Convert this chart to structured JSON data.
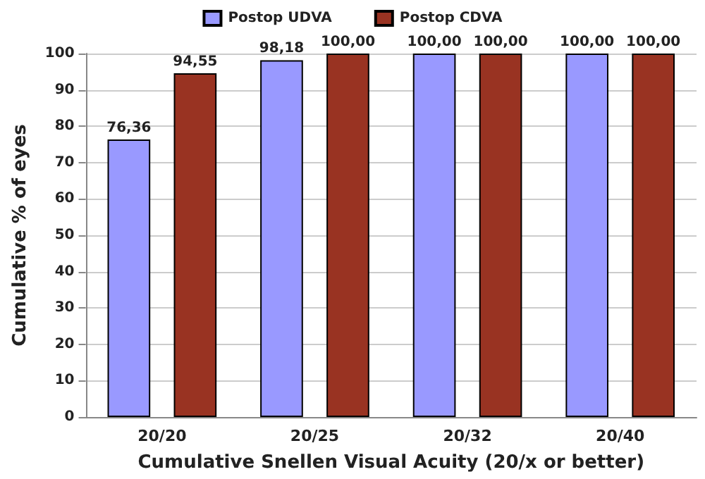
{
  "chart_data": {
    "type": "bar",
    "xlabel": "Cumulative Snellen Visual Acuity (20/x or better)",
    "ylabel": "Cumulative % of eyes",
    "categories": [
      "20/20",
      "20/25",
      "20/32",
      "20/40"
    ],
    "series": [
      {
        "name": "Postop UDVA",
        "color": "#9999ff",
        "values": [
          76.36,
          98.18,
          100,
          100
        ],
        "value_labels": [
          "76,36",
          "98,18",
          "100,00",
          "100,00"
        ]
      },
      {
        "name": "Postop CDVA",
        "color": "#993322",
        "values": [
          94.55,
          100,
          100,
          100
        ],
        "value_labels": [
          "94,55",
          "100,00",
          "100,00",
          "100,00"
        ]
      }
    ],
    "ylim": [
      0,
      100
    ],
    "yticks": [
      0,
      10,
      20,
      30,
      40,
      50,
      60,
      70,
      80,
      90,
      100
    ],
    "grid": "y",
    "legend": "top"
  }
}
